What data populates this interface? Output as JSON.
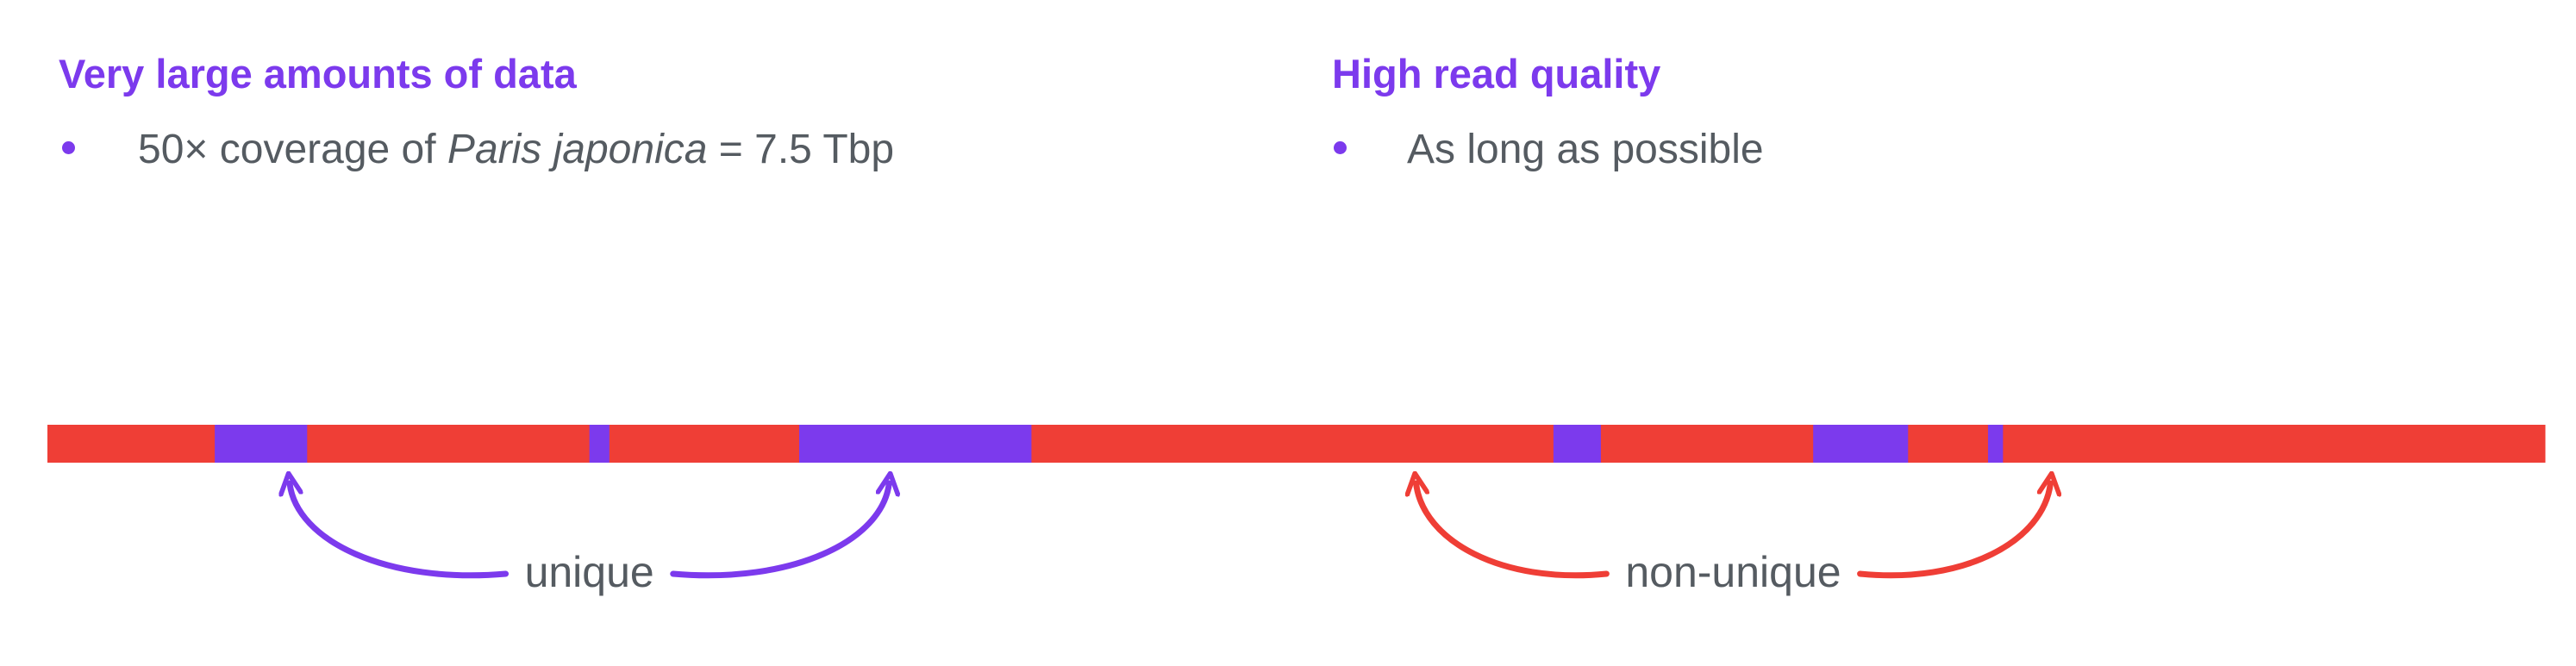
{
  "colors": {
    "purple": "#7c3aed",
    "red": "#ef3e36",
    "text": "#555b61",
    "background": "#ffffff"
  },
  "left_column": {
    "heading": "Very large amounts of data",
    "bullet": {
      "before": "50× coverage of ",
      "italic": "Paris japonica",
      "after": " = 7.5 Tbp"
    }
  },
  "right_column": {
    "heading": "High read quality",
    "bullet": {
      "text": "As long as possible"
    }
  },
  "genome_diagram": {
    "total_length": 1000,
    "segments": [
      {
        "kind": "non-unique",
        "start": 0,
        "end": 67
      },
      {
        "kind": "unique",
        "start": 67,
        "end": 104
      },
      {
        "kind": "non-unique",
        "start": 104,
        "end": 217
      },
      {
        "kind": "unique",
        "start": 217,
        "end": 225
      },
      {
        "kind": "non-unique",
        "start": 225,
        "end": 301
      },
      {
        "kind": "unique",
        "start": 301,
        "end": 394
      },
      {
        "kind": "non-unique",
        "start": 394,
        "end": 603
      },
      {
        "kind": "unique",
        "start": 603,
        "end": 622
      },
      {
        "kind": "non-unique",
        "start": 622,
        "end": 707
      },
      {
        "kind": "unique",
        "start": 707,
        "end": 745
      },
      {
        "kind": "non-unique",
        "start": 745,
        "end": 777
      },
      {
        "kind": "unique",
        "start": 777,
        "end": 783
      },
      {
        "kind": "non-unique",
        "start": 783,
        "end": 1000
      }
    ],
    "callouts": [
      {
        "label": "unique",
        "kind": "unique",
        "targets": [
          97,
          337
        ]
      },
      {
        "label": "non-unique",
        "kind": "non-unique",
        "targets": [
          548,
          802
        ]
      }
    ]
  }
}
